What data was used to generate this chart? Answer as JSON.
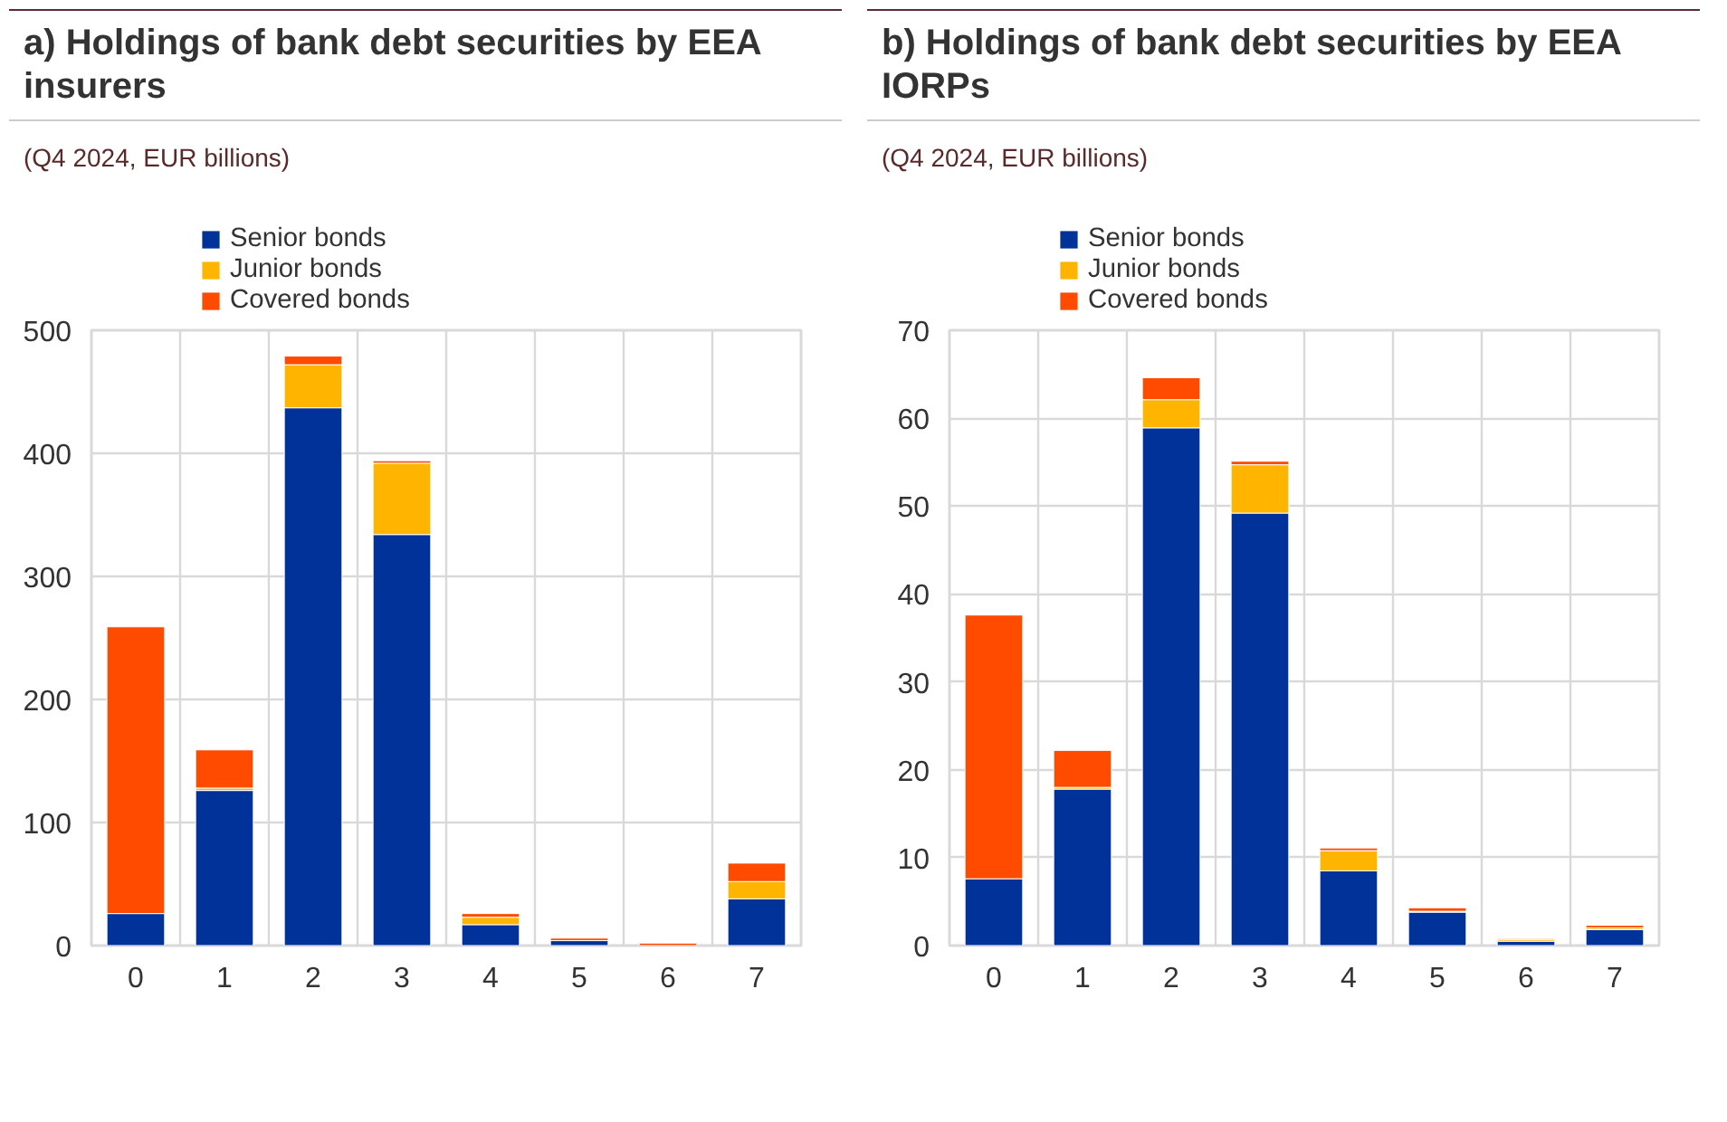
{
  "chart_data": [
    {
      "type": "bar",
      "title": "a) Holdings of bank debt securities by EEA insurers",
      "subtitle": "(Q4 2024, EUR billions)",
      "categories": [
        "0",
        "1",
        "2",
        "3",
        "4",
        "5",
        "6",
        "7"
      ],
      "stacked": true,
      "ylim": [
        0,
        500
      ],
      "yticks": [
        0,
        100,
        200,
        300,
        400,
        500
      ],
      "grid": true,
      "legend": "top left",
      "series": [
        {
          "name": "Senior bonds",
          "color": "#003299",
          "values": [
            26,
            126,
            437,
            334,
            17,
            4,
            0,
            38
          ]
        },
        {
          "name": "Junior bonds",
          "color": "#ffb400",
          "values": [
            0,
            2,
            35,
            58,
            6,
            0,
            0,
            14
          ]
        },
        {
          "name": "Covered bonds",
          "color": "#ff4b00",
          "values": [
            233,
            31,
            7,
            2,
            3,
            2,
            2,
            15
          ]
        }
      ]
    },
    {
      "type": "bar",
      "title": "b) Holdings of bank debt securities by EEA IORPs",
      "subtitle": "(Q4 2024, EUR billions)",
      "categories": [
        "0",
        "1",
        "2",
        "3",
        "4",
        "5",
        "6",
        "7"
      ],
      "stacked": true,
      "ylim": [
        0,
        70
      ],
      "yticks": [
        0,
        10,
        20,
        30,
        40,
        50,
        60,
        70
      ],
      "grid": true,
      "legend": "top left",
      "series": [
        {
          "name": "Senior bonds",
          "color": "#003299",
          "values": [
            7.6,
            17.8,
            58.9,
            49.2,
            8.5,
            3.8,
            0.5,
            1.8
          ]
        },
        {
          "name": "Junior bonds",
          "color": "#ffb400",
          "values": [
            0,
            0.2,
            3.2,
            5.5,
            2.3,
            0.1,
            0.2,
            0.2
          ]
        },
        {
          "name": "Covered bonds",
          "color": "#ff4b00",
          "values": [
            30,
            4.2,
            2.5,
            0.4,
            0.3,
            0.4,
            0.1,
            0.3
          ]
        }
      ]
    }
  ]
}
